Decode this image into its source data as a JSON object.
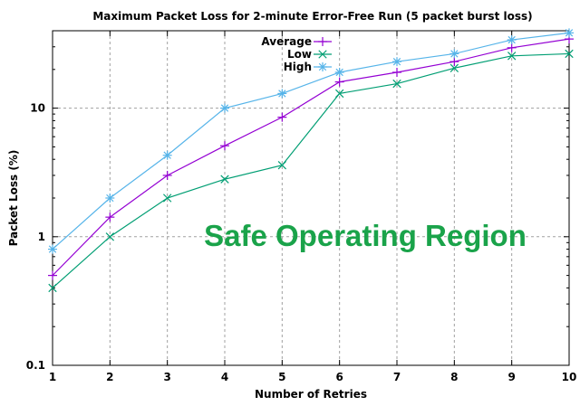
{
  "chart_data": {
    "type": "line",
    "title": "Maximum Packet Loss for 2-minute Error-Free Run (5 packet burst loss)",
    "xlabel": "Number of Retries",
    "ylabel": "Packet Loss (%)",
    "x": [
      1,
      2,
      3,
      4,
      5,
      6,
      7,
      8,
      9,
      10
    ],
    "xlim": [
      1,
      10
    ],
    "ylim": [
      0.1,
      40
    ],
    "yscale": "log",
    "x_ticks": [
      "1",
      "2",
      "3",
      "4",
      "5",
      "6",
      "7",
      "8",
      "9",
      "10"
    ],
    "y_ticks": [
      {
        "value": 0.1,
        "label": "0.1"
      },
      {
        "value": 1,
        "label": "1"
      },
      {
        "value": 10,
        "label": "10"
      }
    ],
    "grid": true,
    "legend_position": "top-center",
    "series": [
      {
        "name": "Average",
        "color": "#9400d3",
        "marker": "+",
        "values": [
          0.5,
          1.42,
          3.0,
          5.1,
          8.5,
          16.0,
          19.0,
          23.0,
          29.5,
          34.5
        ]
      },
      {
        "name": "Low",
        "color": "#009e73",
        "marker": "x",
        "values": [
          0.4,
          1.0,
          2.0,
          2.8,
          3.6,
          13.0,
          15.5,
          20.5,
          25.5,
          26.5
        ]
      },
      {
        "name": "High",
        "color": "#56b4e9",
        "marker": "*",
        "values": [
          0.8,
          2.0,
          4.3,
          10.0,
          13.0,
          19.0,
          23.0,
          26.5,
          34.0,
          38.5
        ]
      }
    ],
    "annotation": {
      "text": "Safe Operating Region",
      "color": "#1aa34a"
    }
  }
}
